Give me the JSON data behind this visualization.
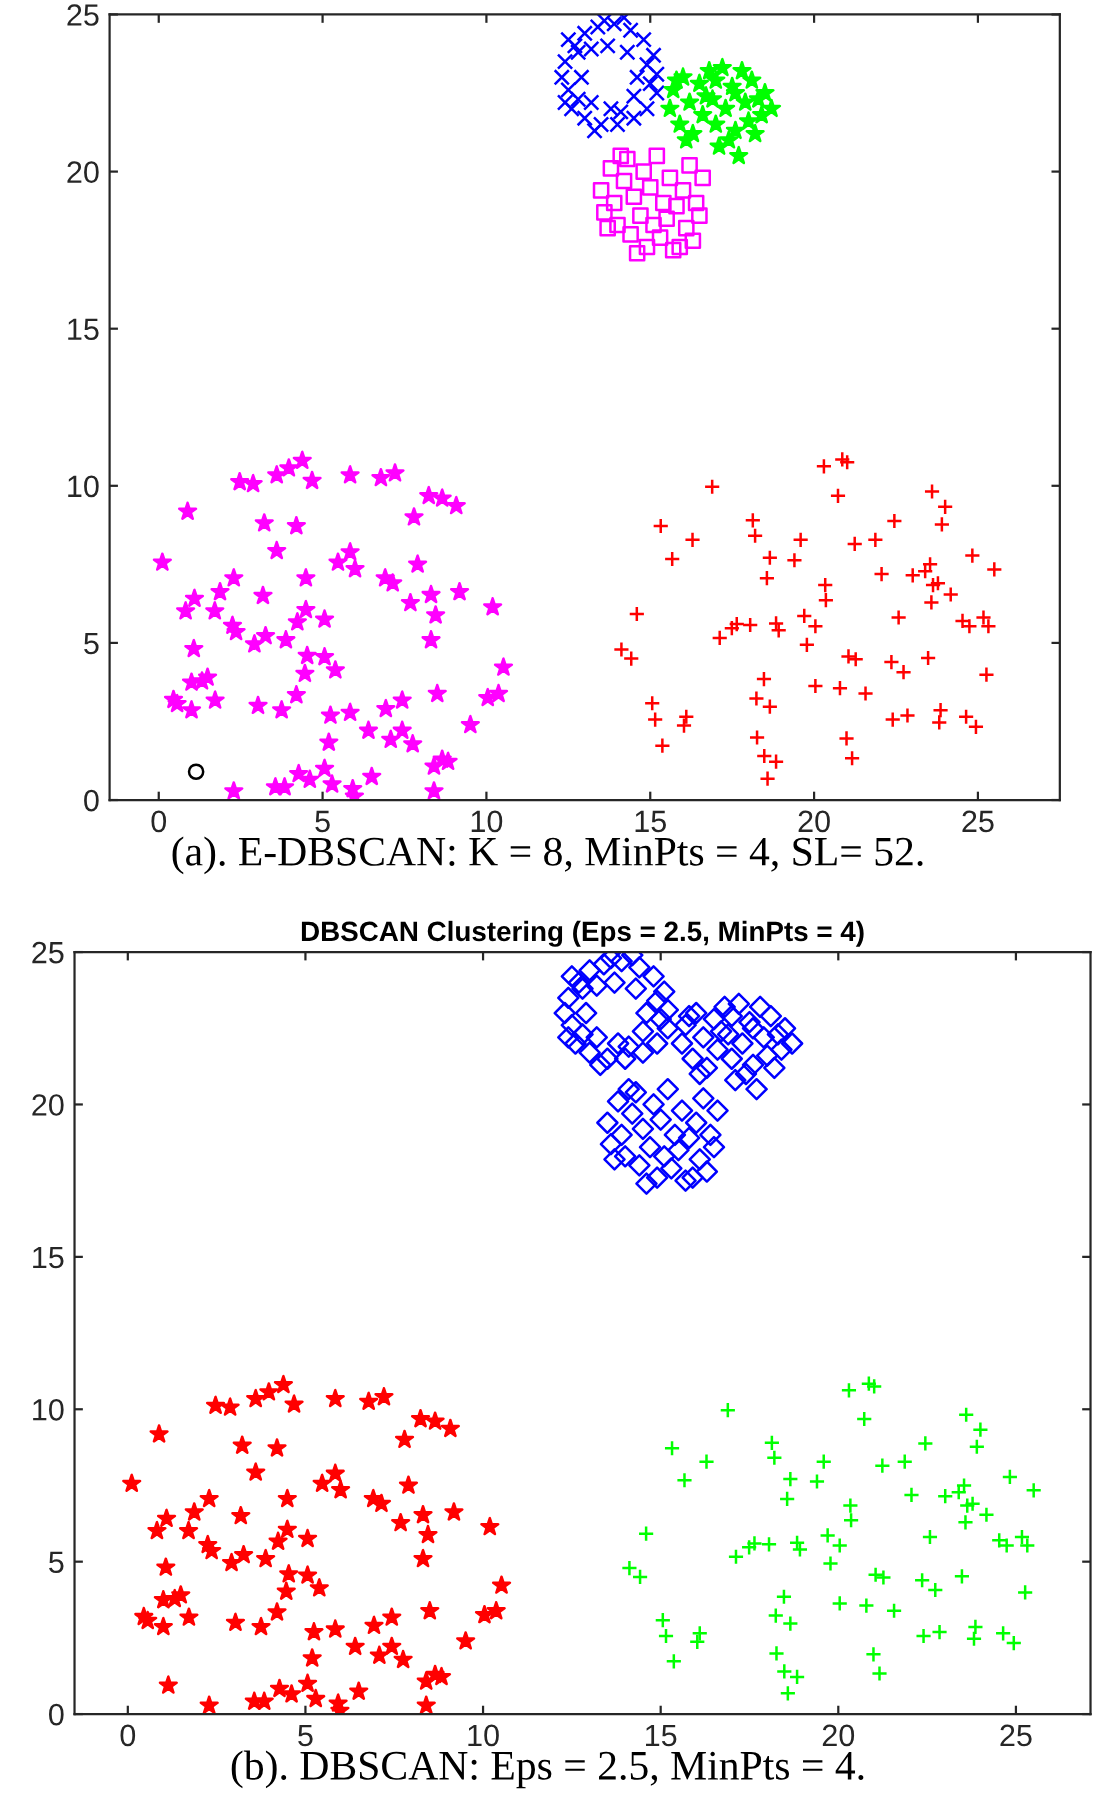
{
  "chart_data": [
    {
      "type": "scatter",
      "xlim": [
        -1.5,
        27.5
      ],
      "ylim": [
        0,
        25
      ],
      "xticks": [
        0,
        5,
        10,
        15,
        20,
        25
      ],
      "yticks": [
        0,
        5,
        10,
        15,
        20,
        25
      ],
      "grid": false,
      "annotations": [
        "(a). E-DBSCAN: K = 8, MinPts = 4, SL= 52."
      ],
      "series": [
        {
          "color": "#0000ff",
          "marker": "x",
          "x": [
            12.4,
            12.5,
            12.7,
            12.6,
            13.0,
            13.0,
            13.4,
            13.5,
            13.9,
            14.0,
            14.4,
            14.5,
            14.8,
            14.9,
            15.1,
            15.2,
            15.2,
            12.3,
            12.9,
            13.2,
            13.2,
            14.3,
            14.5,
            14.6,
            13.7,
            13.8,
            12.8,
            12.8,
            14.9,
            14.1,
            13.3,
            14.2,
            12.5,
            15.0,
            13.6,
            12.4
          ],
          "values": [
            23.5,
            22.6,
            24.0,
            22.0,
            24.4,
            21.7,
            24.6,
            21.5,
            24.7,
            21.5,
            24.5,
            21.7,
            24.2,
            22.0,
            23.7,
            22.5,
            23.1,
            23.0,
            23.0,
            23.9,
            22.2,
            23.8,
            22.4,
            23.0,
            24.0,
            22.0,
            23.8,
            22.3,
            23.4,
            21.9,
            21.3,
            24.9,
            24.2,
            22.8,
            24.8,
            22.2
          ]
        },
        {
          "color": "#00ff00",
          "marker": "star",
          "x": [
            15.6,
            15.7,
            15.9,
            16.0,
            16.2,
            16.3,
            16.5,
            16.6,
            16.8,
            16.9,
            17.0,
            17.1,
            17.2,
            17.3,
            17.5,
            17.6,
            17.7,
            17.8,
            17.9,
            18.0,
            18.1,
            18.3,
            18.4,
            18.5,
            18.7,
            17.4,
            16.1,
            15.8,
            16.7,
            17.6,
            18.2,
            17.0
          ],
          "values": [
            22.0,
            22.6,
            21.5,
            23.0,
            22.2,
            21.2,
            22.8,
            21.8,
            23.2,
            22.3,
            21.5,
            20.8,
            23.3,
            22.0,
            22.7,
            21.3,
            20.5,
            23.2,
            22.2,
            21.6,
            22.9,
            22.3,
            21.8,
            22.5,
            22.0,
            21.0,
            21.0,
            22.9,
            22.4,
            22.5,
            21.2,
            22.9
          ]
        },
        {
          "color": "#ff00ff",
          "marker": "square",
          "x": [
            13.5,
            13.6,
            13.8,
            13.9,
            14.0,
            14.2,
            14.3,
            14.4,
            14.5,
            14.7,
            14.8,
            14.9,
            15.0,
            15.1,
            15.2,
            15.3,
            15.4,
            15.5,
            15.6,
            15.7,
            15.8,
            16.0,
            16.1,
            16.2,
            16.3,
            16.4,
            16.5,
            14.6,
            15.9,
            14.1,
            13.7,
            16.6
          ],
          "values": [
            19.4,
            18.7,
            20.1,
            19.0,
            18.3,
            19.7,
            20.4,
            18.0,
            19.2,
            18.6,
            20.0,
            17.6,
            19.5,
            18.3,
            20.5,
            17.9,
            19.0,
            18.5,
            19.8,
            17.5,
            18.9,
            19.4,
            18.2,
            20.2,
            17.8,
            19.0,
            18.6,
            17.4,
            17.6,
            20.5,
            18.2,
            19.8
          ]
        },
        {
          "color": "#ff00ff",
          "marker": "star",
          "x": [
            4.38,
            3.97,
            3.6,
            4.68,
            2.47,
            2.88,
            5.84,
            6.78,
            7.21,
            0.88,
            8.24,
            8.65,
            9.08,
            7.79,
            3.22,
            4.2,
            3.6,
            5.84,
            5.47,
            5.99,
            0.11,
            7.9,
            2.29,
            4.49,
            6.91,
            7.14,
            1.87,
            3.18,
            1.09,
            0.82,
            1.71,
            4.49,
            7.68,
            8.31,
            9.18,
            10.19,
            8.45,
            4.23,
            5.06,
            2.25,
            2.36,
            3.26,
            2.92,
            3.88,
            8.31,
            1.07,
            4.53,
            5.06,
            4.46,
            5.39,
            10.52,
            1.0,
            1.32,
            1.49,
            0.45,
            0.56,
            1.0,
            1.72,
            3.03,
            3.75,
            4.2,
            8.5,
            10.04,
            10.37,
            5.24,
            5.84,
            6.93,
            7.43,
            6.4,
            7.08,
            7.43,
            7.75,
            5.19,
            9.51,
            4.27,
            5.06,
            4.61,
            3.56,
            3.84,
            5.29,
            6.5,
            5.92,
            5.97,
            2.29,
            8.4,
            8.4,
            8.65,
            8.83
          ],
          "values": [
            10.8,
            10.56,
            10.34,
            10.16,
            10.12,
            10.06,
            10.34,
            10.25,
            10.4,
            9.18,
            9.68,
            9.6,
            9.36,
            9.0,
            8.81,
            8.72,
            7.93,
            7.89,
            7.56,
            7.35,
            7.56,
            7.5,
            7.06,
            7.06,
            7.06,
            6.9,
            6.62,
            6.5,
            6.41,
            6.01,
            6.01,
            6.05,
            6.27,
            6.53,
            6.62,
            6.14,
            5.88,
            5.66,
            5.75,
            5.55,
            5.35,
            5.22,
            4.96,
            5.09,
            5.09,
            4.81,
            4.59,
            4.55,
            4.02,
            4.13,
            4.22,
            3.74,
            3.78,
            3.9,
            3.19,
            3.06,
            2.86,
            3.17,
            3.0,
            2.86,
            3.34,
            3.38,
            3.25,
            3.38,
            2.69,
            2.78,
            2.9,
            3.17,
            2.21,
            1.92,
            2.21,
            1.78,
            1.83,
            2.39,
            0.83,
            1.0,
            0.65,
            0.41,
            0.41,
            0.5,
            0.74,
            0.35,
            0.11,
            0.28,
            0.28,
            1.07,
            1.29,
            1.22
          ]
        },
        {
          "color": "#ff0000",
          "marker": "cross",
          "x": [
            20.86,
            21.01,
            20.3,
            20.73,
            16.89,
            23.6,
            24.0,
            23.9,
            22.45,
            21.87,
            21.24,
            19.59,
            19.4,
            15.32,
            16.29,
            15.67,
            18.13,
            18.2,
            18.65,
            18.56,
            24.83,
            25.5,
            22.06,
            23.01,
            23.39,
            23.54,
            23.63,
            23.78,
            24.17,
            23.58,
            20.34,
            20.36,
            14.59,
            22.58,
            24.53,
            24.74,
            25.17,
            25.32,
            17.64,
            18.05,
            17.49,
            18.84,
            18.92,
            19.7,
            20.04,
            17.12,
            19.78,
            14.12,
            14.42,
            21.05,
            21.27,
            22.36,
            22.73,
            23.48,
            25.26,
            18.47,
            18.24,
            18.65,
            20.04,
            20.79,
            21.57,
            15.06,
            15.15,
            16.1,
            16.03,
            15.37,
            22.4,
            22.85,
            23.86,
            23.82,
            24.64,
            24.94,
            18.26,
            18.48,
            18.84,
            18.58,
            20.99,
            21.16
          ],
          "values": [
            10.84,
            10.75,
            10.62,
            9.68,
            9.97,
            9.82,
            9.33,
            8.77,
            8.88,
            8.28,
            8.15,
            8.28,
            7.63,
            8.72,
            8.28,
            7.67,
            8.9,
            8.41,
            7.71,
            7.06,
            7.78,
            7.34,
            7.19,
            7.15,
            7.28,
            7.5,
            6.84,
            6.9,
            6.54,
            6.29,
            6.84,
            6.36,
            5.92,
            5.81,
            5.7,
            5.53,
            5.81,
            5.53,
            5.6,
            5.57,
            5.47,
            5.62,
            5.4,
            5.86,
            5.53,
            5.16,
            4.94,
            4.79,
            4.5,
            4.57,
            4.48,
            4.39,
            4.07,
            4.52,
            3.99,
            3.85,
            3.23,
            2.97,
            3.63,
            3.56,
            3.39,
            3.08,
            2.56,
            2.65,
            2.37,
            1.73,
            2.56,
            2.69,
            2.86,
            2.47,
            2.65,
            2.33,
            1.99,
            1.4,
            1.22,
            0.68,
            1.96,
            1.33
          ]
        },
        {
          "color": "#000000",
          "marker": "circle",
          "x": [
            1.14
          ],
          "values": [
            0.9
          ]
        }
      ]
    },
    {
      "type": "scatter",
      "title": "DBSCAN Clustering (Eps = 2.5, MinPts = 4)",
      "xlim": [
        -1.5,
        27.1
      ],
      "ylim": [
        0,
        25
      ],
      "xticks": [
        0,
        5,
        10,
        15,
        20,
        25
      ],
      "yticks": [
        0,
        5,
        10,
        15,
        20,
        25
      ],
      "grid": false,
      "annotations": [
        "(b). DBSCAN: Eps = 2.5, MinPts = 4."
      ],
      "series": [
        {
          "color": "#0000ff",
          "marker": "diamond",
          "x": [
            12.4,
            12.5,
            12.7,
            12.6,
            13.0,
            13.0,
            13.4,
            13.5,
            13.9,
            14.0,
            14.4,
            14.5,
            14.8,
            14.9,
            15.1,
            15.2,
            15.2,
            12.3,
            12.9,
            13.2,
            13.2,
            14.3,
            14.5,
            14.6,
            13.7,
            13.8,
            12.8,
            12.8,
            14.9,
            14.1,
            13.3,
            14.2,
            12.5,
            15.0,
            13.6,
            12.4,
            15.6,
            15.7,
            15.9,
            16.0,
            16.2,
            16.3,
            16.5,
            16.6,
            16.8,
            16.9,
            17.0,
            17.1,
            17.2,
            17.3,
            17.5,
            17.6,
            17.7,
            17.8,
            17.9,
            18.0,
            18.1,
            18.3,
            18.4,
            18.5,
            18.7,
            17.4,
            16.1,
            15.8,
            16.7,
            17.6,
            18.2,
            17.0,
            13.5,
            13.6,
            13.8,
            13.9,
            14.0,
            14.2,
            14.3,
            14.4,
            14.5,
            14.7,
            14.8,
            14.9,
            15.0,
            15.1,
            15.2,
            15.3,
            15.4,
            15.5,
            15.6,
            15.7,
            15.8,
            16.0,
            16.1,
            16.2,
            16.3,
            16.4,
            16.5,
            14.6,
            15.9,
            14.1,
            13.7,
            16.6
          ],
          "values": [
            23.5,
            22.6,
            24.0,
            22.0,
            24.4,
            21.7,
            24.6,
            21.5,
            24.7,
            21.5,
            24.5,
            21.7,
            24.2,
            22.0,
            23.7,
            22.5,
            23.1,
            23.0,
            23.0,
            23.9,
            22.2,
            23.8,
            22.4,
            23.0,
            24.0,
            22.0,
            23.8,
            22.3,
            23.4,
            21.9,
            21.3,
            24.9,
            24.2,
            22.8,
            24.8,
            22.2,
            22.0,
            22.6,
            21.5,
            23.0,
            22.2,
            21.2,
            22.8,
            21.8,
            23.2,
            22.3,
            21.5,
            20.8,
            23.3,
            22.0,
            22.7,
            21.3,
            20.5,
            23.2,
            22.2,
            21.6,
            22.9,
            22.3,
            21.8,
            22.5,
            22.0,
            21.0,
            21.0,
            22.9,
            22.4,
            22.5,
            21.2,
            22.9,
            19.4,
            18.7,
            20.1,
            19.0,
            18.3,
            19.7,
            20.4,
            18.0,
            19.2,
            18.6,
            20.0,
            17.6,
            19.5,
            18.3,
            20.5,
            17.9,
            19.0,
            18.5,
            19.8,
            17.5,
            18.9,
            19.4,
            18.2,
            20.2,
            17.8,
            19.0,
            18.6,
            17.4,
            17.6,
            20.5,
            18.2,
            19.8
          ]
        },
        {
          "color": "#ff0000",
          "marker": "star",
          "x": [
            4.38,
            3.97,
            3.6,
            4.68,
            2.47,
            2.88,
            5.84,
            6.78,
            7.21,
            0.88,
            8.24,
            8.65,
            9.08,
            7.79,
            3.22,
            4.2,
            3.6,
            5.84,
            5.47,
            5.99,
            0.11,
            7.9,
            2.29,
            4.49,
            6.91,
            7.14,
            1.87,
            3.18,
            1.09,
            0.82,
            1.71,
            4.49,
            7.68,
            8.31,
            9.18,
            10.19,
            8.45,
            4.23,
            5.06,
            2.25,
            2.36,
            3.26,
            2.92,
            3.88,
            8.31,
            1.07,
            4.53,
            5.06,
            4.46,
            5.39,
            10.52,
            1.0,
            1.32,
            1.49,
            0.45,
            0.56,
            1.0,
            1.72,
            3.03,
            3.75,
            4.2,
            8.5,
            10.04,
            10.37,
            5.24,
            5.84,
            6.93,
            7.43,
            6.4,
            7.08,
            7.43,
            7.75,
            5.19,
            9.51,
            1.14,
            4.27,
            5.06,
            4.61,
            3.56,
            3.84,
            5.29,
            6.5,
            5.92,
            5.97,
            2.29,
            8.4,
            8.4,
            8.65,
            8.83
          ],
          "values": [
            10.8,
            10.56,
            10.34,
            10.16,
            10.12,
            10.06,
            10.34,
            10.25,
            10.4,
            9.18,
            9.68,
            9.6,
            9.36,
            9.0,
            8.81,
            8.72,
            7.93,
            7.89,
            7.56,
            7.35,
            7.56,
            7.5,
            7.06,
            7.06,
            7.06,
            6.9,
            6.62,
            6.5,
            6.41,
            6.01,
            6.01,
            6.05,
            6.27,
            6.53,
            6.62,
            6.14,
            5.88,
            5.66,
            5.75,
            5.55,
            5.35,
            5.22,
            4.96,
            5.09,
            5.09,
            4.81,
            4.59,
            4.55,
            4.02,
            4.13,
            4.22,
            3.74,
            3.78,
            3.9,
            3.19,
            3.06,
            2.86,
            3.17,
            3.0,
            2.86,
            3.34,
            3.38,
            3.25,
            3.38,
            2.69,
            2.78,
            2.9,
            3.17,
            2.21,
            1.92,
            2.21,
            1.78,
            1.83,
            2.39,
            0.94,
            0.83,
            1.0,
            0.65,
            0.41,
            0.41,
            0.5,
            0.74,
            0.35,
            0.11,
            0.28,
            0.28,
            1.07,
            1.29,
            1.22
          ]
        },
        {
          "color": "#00ff00",
          "marker": "cross",
          "x": [
            20.86,
            21.01,
            20.3,
            20.73,
            16.89,
            23.6,
            24.0,
            23.9,
            22.45,
            21.87,
            21.24,
            19.59,
            19.4,
            15.32,
            16.29,
            15.67,
            18.13,
            18.2,
            18.65,
            18.56,
            24.83,
            25.5,
            22.06,
            23.01,
            23.39,
            23.54,
            23.63,
            23.78,
            24.17,
            23.58,
            20.34,
            20.36,
            14.59,
            22.58,
            24.53,
            24.74,
            25.17,
            25.32,
            17.64,
            18.05,
            17.49,
            18.84,
            18.92,
            19.7,
            20.04,
            17.12,
            19.78,
            14.12,
            14.42,
            21.05,
            21.27,
            22.36,
            22.73,
            23.48,
            25.26,
            18.47,
            18.24,
            18.65,
            20.04,
            20.79,
            21.57,
            15.06,
            15.15,
            16.1,
            16.03,
            15.37,
            22.4,
            22.85,
            23.86,
            23.82,
            24.64,
            24.94,
            18.26,
            18.48,
            18.84,
            18.58,
            20.99,
            21.16
          ],
          "values": [
            10.84,
            10.75,
            10.62,
            9.68,
            9.97,
            9.82,
            9.33,
            8.77,
            8.88,
            8.28,
            8.15,
            8.28,
            7.63,
            8.72,
            8.28,
            7.67,
            8.9,
            8.41,
            7.71,
            7.06,
            7.78,
            7.34,
            7.19,
            7.15,
            7.28,
            7.5,
            6.84,
            6.9,
            6.54,
            6.29,
            6.84,
            6.36,
            5.92,
            5.81,
            5.7,
            5.53,
            5.81,
            5.53,
            5.6,
            5.57,
            5.47,
            5.62,
            5.4,
            5.86,
            5.53,
            5.16,
            4.94,
            4.79,
            4.5,
            4.57,
            4.48,
            4.39,
            4.07,
            4.52,
            3.99,
            3.85,
            3.23,
            2.97,
            3.63,
            3.56,
            3.39,
            3.08,
            2.56,
            2.65,
            2.37,
            1.73,
            2.56,
            2.69,
            2.86,
            2.47,
            2.65,
            2.33,
            1.99,
            1.4,
            1.22,
            0.68,
            1.96,
            1.33
          ]
        }
      ]
    }
  ]
}
